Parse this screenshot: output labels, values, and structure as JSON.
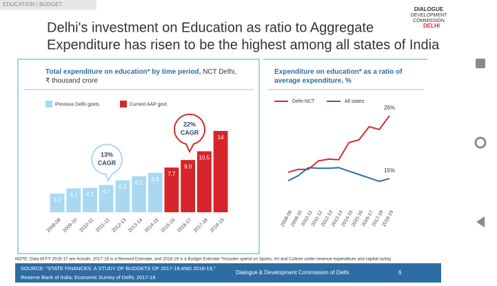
{
  "header": {
    "section": "EDUCATION | BUDGET",
    "title_lines": [
      "Delhi's investment on Education as ratio to Aggregate",
      "Expenditure has risen to be the highest among all states of India"
    ],
    "logo": [
      "DIALOGUE",
      "DEVELOPMENT",
      "COMMISSION",
      "DELHI"
    ]
  },
  "chart_data": [
    {
      "type": "bar",
      "title": "Total expenditure on education* by time period,",
      "subtitle": "NCT Delhi, ₹ thousand crore",
      "categories": [
        "2008-09",
        "2009-10",
        "2010-11",
        "2011-12",
        "2012-13",
        "2013-14",
        "2014-15",
        "2015-16",
        "2016-17",
        "2017-18",
        "2018-19"
      ],
      "series": [
        {
          "name": "Previous Delhi govts.",
          "color": "#a9d9f2",
          "values": [
            3.2,
            4.1,
            4.2,
            4.7,
            5.5,
            6.2,
            6.8,
            null,
            null,
            null,
            null
          ]
        },
        {
          "name": "Current AAP govt.",
          "color": "#d7262b",
          "values": [
            null,
            null,
            null,
            null,
            null,
            null,
            null,
            7.7,
            9.0,
            10.5,
            14
          ],
          "value_labels": [
            null,
            null,
            null,
            null,
            null,
            null,
            null,
            "7.7",
            "9.0",
            "10.5",
            "14"
          ]
        }
      ],
      "ylim": [
        0,
        14
      ],
      "annotations": [
        [
          "13%",
          "CAGR"
        ],
        [
          "22%",
          "CAGR"
        ]
      ]
    },
    {
      "type": "line",
      "title": "Expenditure on education* as a ratio of",
      "subtitle": "average expenditure, %",
      "categories": [
        "2008-09",
        "2009-10",
        "2010-11",
        "2011-12",
        "2012-13",
        "2013-14",
        "2014-15",
        "2015-16",
        "2016-17",
        "2017-18",
        "2018-19"
      ],
      "series": [
        {
          "name": "Delhi NCT",
          "color": "#d7262b",
          "values": [
            16.1,
            16.6,
            16.6,
            18.1,
            18.4,
            18.3,
            21.3,
            21.8,
            24.1,
            23.6,
            26
          ],
          "value_labels": [
            null,
            null,
            null,
            null,
            null,
            null,
            null,
            null,
            null,
            null,
            "26%"
          ]
        },
        {
          "name": "All states",
          "color": "#2e6da4",
          "values": [
            14.6,
            15.5,
            16.9,
            16.8,
            16.8,
            16.9,
            16.3,
            15.7,
            15.1,
            14.5,
            15
          ],
          "value_labels": [
            null,
            null,
            null,
            null,
            null,
            null,
            null,
            null,
            null,
            null,
            "15%"
          ]
        }
      ],
      "ylim": [
        10,
        28
      ]
    }
  ],
  "footer": {
    "note": "NOTE: Data till FY 2016-17 are Actuals, 2017-18 is a Revised Estimate, and 2018-19 is a Budget Estimate *Includes spend on Sports, Art and Culture under revenue expenditure and capital outlay",
    "source": [
      "SOURCE: \"STATE FINANCES: A STUDY OF BUDGETS OF 2017-18 AND 2018-19,\"",
      "Reserve Bank of India; Economic Survey of Delhi, 2017-18"
    ],
    "org": "Dialogue & Development Commission of Delhi",
    "page": "6"
  }
}
